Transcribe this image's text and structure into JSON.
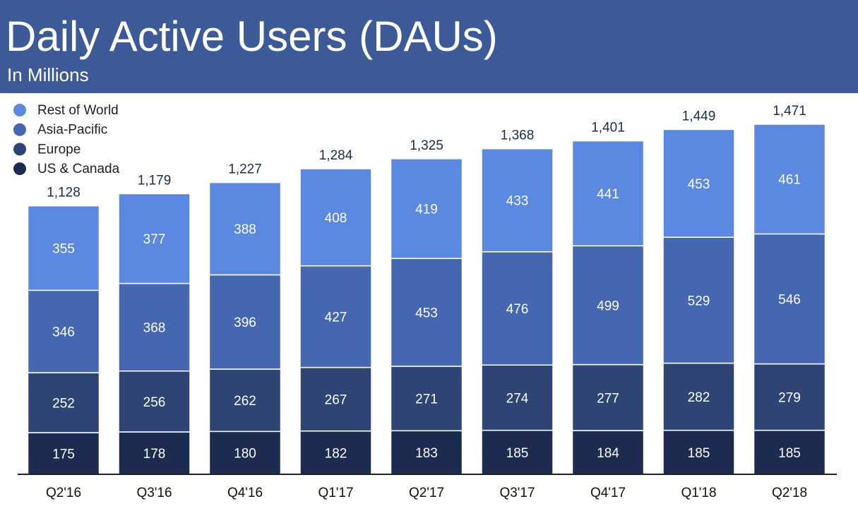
{
  "chart_data": {
    "type": "stacked_bar",
    "title": "Daily Active Users (DAUs)",
    "subtitle": "In Millions",
    "categories": [
      "Q2'16",
      "Q3'16",
      "Q4'16",
      "Q1'17",
      "Q2'17",
      "Q3'17",
      "Q4'17",
      "Q1'18",
      "Q2'18"
    ],
    "series": [
      {
        "name": "US & Canada",
        "color": "#1c2b4f",
        "values": [
          175,
          178,
          180,
          182,
          183,
          185,
          184,
          185,
          185
        ]
      },
      {
        "name": "Europe",
        "color": "#2d4475",
        "values": [
          252,
          256,
          262,
          267,
          271,
          274,
          277,
          282,
          279
        ]
      },
      {
        "name": "Asia-Pacific",
        "color": "#4566b0",
        "values": [
          346,
          368,
          396,
          427,
          453,
          476,
          499,
          529,
          546
        ]
      },
      {
        "name": "Rest of World",
        "color": "#5b88e0",
        "values": [
          355,
          377,
          388,
          408,
          419,
          433,
          441,
          453,
          461
        ]
      }
    ],
    "totals": [
      1128,
      1179,
      1227,
      1284,
      1325,
      1368,
      1401,
      1449,
      1471
    ],
    "total_labels": [
      "1,128",
      "1,179",
      "1,227",
      "1,284",
      "1,325",
      "1,368",
      "1,401",
      "1,449",
      "1,471"
    ],
    "legend": "top-left"
  }
}
